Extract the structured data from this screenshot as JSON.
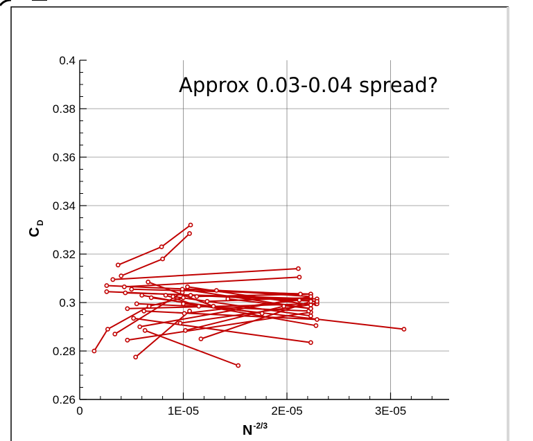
{
  "chart_data": {
    "type": "line",
    "title": "",
    "annotation": "Approx 0.03-0.04 spread?",
    "xlabel": {
      "base": "N",
      "superscript": "-2/3"
    },
    "ylabel": {
      "base": "C",
      "subscript": "D"
    },
    "xlim": [
      0,
      3.5e-05
    ],
    "ylim": [
      0.26,
      0.4
    ],
    "x_ticks": [
      {
        "value": 0,
        "label": "0"
      },
      {
        "value": 1e-05,
        "label": "1E-05"
      },
      {
        "value": 2e-05,
        "label": "2E-05"
      },
      {
        "value": 3e-05,
        "label": "3E-05"
      }
    ],
    "y_ticks": [
      {
        "value": 0.26,
        "label": "0.26"
      },
      {
        "value": 0.28,
        "label": "0.28"
      },
      {
        "value": 0.3,
        "label": "0.3"
      },
      {
        "value": 0.32,
        "label": "0.32"
      },
      {
        "value": 0.34,
        "label": "0.34"
      },
      {
        "value": 0.36,
        "label": "0.36"
      },
      {
        "value": 0.38,
        "label": "0.38"
      },
      {
        "value": 0.4,
        "label": "0.4"
      }
    ],
    "grid": true,
    "series_color": "#c00000",
    "series": [
      {
        "points": [
          [
            1.4e-06,
            0.28
          ],
          [
            2.7e-06,
            0.289
          ],
          [
            6.7e-06,
            0.2985
          ],
          [
            1e-05,
            0.302
          ]
        ]
      },
      {
        "points": [
          [
            3.4e-06,
            0.287
          ],
          [
            9.9e-06,
            0.3042
          ]
        ]
      },
      {
        "points": [
          [
            3.7e-06,
            0.3155
          ],
          [
            7.9e-06,
            0.323
          ],
          [
            1.07e-05,
            0.332
          ]
        ]
      },
      {
        "points": [
          [
            4e-06,
            0.311
          ],
          [
            8e-06,
            0.318
          ],
          [
            1.06e-05,
            0.3285
          ]
        ]
      },
      {
        "points": [
          [
            2.6e-06,
            0.307
          ],
          [
            2.13e-05,
            0.3035
          ]
        ]
      },
      {
        "points": [
          [
            2.6e-06,
            0.3045
          ],
          [
            2.23e-05,
            0.301
          ]
        ]
      },
      {
        "points": [
          [
            3.2e-06,
            0.3095
          ],
          [
            2.11e-05,
            0.314
          ]
        ]
      },
      {
        "points": [
          [
            4.3e-06,
            0.3065
          ],
          [
            2.12e-05,
            0.3105
          ]
        ]
      },
      {
        "points": [
          [
            4.4e-06,
            0.304
          ],
          [
            2.29e-05,
            0.3015
          ]
        ]
      },
      {
        "points": [
          [
            4.6e-06,
            0.2975
          ],
          [
            2.28e-05,
            0.2995
          ]
        ]
      },
      {
        "points": [
          [
            4.6e-06,
            0.2845
          ],
          [
            2.23e-05,
            0.296
          ]
        ]
      },
      {
        "points": [
          [
            5e-06,
            0.3055
          ],
          [
            2.23e-05,
            0.3035
          ]
        ]
      },
      {
        "points": [
          [
            5.2e-06,
            0.2935
          ],
          [
            2.23e-05,
            0.2835
          ]
        ]
      },
      {
        "points": [
          [
            5.4e-06,
            0.2775
          ],
          [
            1.06e-05,
            0.2965
          ]
        ]
      },
      {
        "points": [
          [
            5.5e-06,
            0.2995
          ],
          [
            2.21e-05,
            0.2965
          ]
        ]
      },
      {
        "points": [
          [
            5.8e-06,
            0.29
          ],
          [
            2.23e-05,
            0.3025
          ]
        ]
      },
      {
        "points": [
          [
            6e-06,
            0.303
          ],
          [
            2.28e-05,
            0.2905
          ]
        ]
      },
      {
        "points": [
          [
            6.2e-06,
            0.2965
          ],
          [
            2.29e-05,
            0.293
          ]
        ]
      },
      {
        "points": [
          [
            6.3e-06,
            0.2885
          ],
          [
            1.53e-05,
            0.274
          ]
        ]
      },
      {
        "points": [
          [
            6.6e-06,
            0.3085
          ],
          [
            1.29e-05,
            0.2985
          ]
        ]
      },
      {
        "points": [
          [
            6.9e-06,
            0.302
          ],
          [
            1.76e-05,
            0.2955
          ]
        ]
      },
      {
        "points": [
          [
            8.3e-06,
            0.303
          ],
          [
            1.15e-05,
            0.2985
          ]
        ]
      },
      {
        "points": [
          [
            9e-06,
            0.3025
          ],
          [
            2.23e-05,
            0.2945
          ]
        ]
      },
      {
        "points": [
          [
            9.7e-06,
            0.2915
          ],
          [
            2.29e-05,
            0.2995
          ]
        ]
      },
      {
        "points": [
          [
            9.9e-06,
            0.3055
          ],
          [
            2.23e-05,
            0.2975
          ]
        ]
      },
      {
        "points": [
          [
            1e-05,
            0.2995
          ],
          [
            3.13e-05,
            0.289
          ]
        ]
      },
      {
        "points": [
          [
            1.01e-05,
            0.2955
          ],
          [
            2.12e-05,
            0.301
          ]
        ]
      },
      {
        "points": [
          [
            1.02e-05,
            0.2885
          ],
          [
            1.97e-05,
            0.2985
          ]
        ]
      },
      {
        "points": [
          [
            1.04e-05,
            0.3065
          ],
          [
            2.23e-05,
            0.299
          ]
        ]
      },
      {
        "points": [
          [
            1.07e-05,
            0.303
          ],
          [
            2.29e-05,
            0.3005
          ]
        ]
      },
      {
        "points": [
          [
            1.13e-05,
            0.3025
          ],
          [
            2.23e-05,
            0.3035
          ]
        ]
      },
      {
        "points": [
          [
            1.17e-05,
            0.285
          ],
          [
            2.23e-05,
            0.3005
          ]
        ]
      },
      {
        "points": [
          [
            1.23e-05,
            0.3005
          ],
          [
            2.23e-05,
            0.302
          ]
        ]
      },
      {
        "points": [
          [
            1.32e-05,
            0.305
          ],
          [
            2.23e-05,
            0.3025
          ]
        ]
      },
      {
        "points": [
          [
            1.43e-05,
            0.3015
          ],
          [
            2.23e-05,
            0.2975
          ]
        ]
      }
    ]
  }
}
